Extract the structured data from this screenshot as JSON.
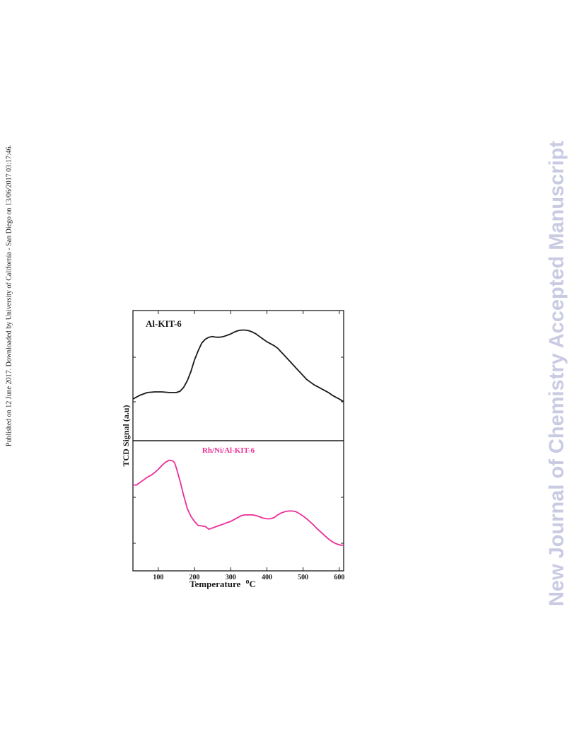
{
  "side_note": "Published on 12 June 2017. Downloaded by University of California - San Diego on 13/06/2017 03:17:46.",
  "watermark": "New Journal of Chemistry Accepted Manuscript",
  "colors": {
    "series_1": "#1a1a1a",
    "series_2": "#ec2e9a",
    "watermark": "#c9cbe3"
  },
  "chart_data": {
    "type": "line",
    "xlabel": "Temperature",
    "xlabel_unit": "oC",
    "ylabel": "TCD Signal (a.u)",
    "xlim": [
      30,
      612
    ],
    "xticks": [
      100,
      200,
      300,
      400,
      500,
      600
    ],
    "y_scale": "arbitrary units, no numeric ticks",
    "grid": false,
    "panels": [
      {
        "title": "Al-KIT-6",
        "ylim": [
          0,
          1
        ],
        "series": [
          {
            "x": [
              30,
              50,
              70,
              90,
              110,
              130,
              150,
              160,
              170,
              180,
              190,
              200,
              210,
              220,
              230,
              240,
              250,
              260,
              270,
              280,
              290,
              300,
              310,
              320,
              330,
              340,
              350,
              360,
              370,
              380,
              390,
              400,
              410,
              420,
              430,
              440,
              450,
              460,
              470,
              480,
              490,
              500,
              510,
              520,
              530,
              540,
              550,
              560,
              570,
              580,
              590,
              600,
              612
            ],
            "y": [
              0.32,
              0.35,
              0.37,
              0.375,
              0.375,
              0.37,
              0.37,
              0.38,
              0.41,
              0.46,
              0.53,
              0.62,
              0.69,
              0.75,
              0.78,
              0.795,
              0.8,
              0.795,
              0.795,
              0.8,
              0.81,
              0.82,
              0.835,
              0.845,
              0.85,
              0.85,
              0.845,
              0.835,
              0.82,
              0.8,
              0.78,
              0.76,
              0.745,
              0.73,
              0.71,
              0.68,
              0.65,
              0.62,
              0.59,
              0.56,
              0.53,
              0.5,
              0.47,
              0.45,
              0.43,
              0.415,
              0.4,
              0.385,
              0.37,
              0.35,
              0.335,
              0.32,
              0.3
            ]
          }
        ]
      },
      {
        "title": "Rh/Ni/Al-KIT-6",
        "ylim": [
          0,
          1
        ],
        "series": [
          {
            "x": [
              30,
              40,
              50,
              60,
              70,
              80,
              90,
              100,
              110,
              120,
              130,
              140,
              145,
              150,
              160,
              170,
              180,
              190,
              200,
              210,
              220,
              230,
              240,
              250,
              260,
              270,
              280,
              290,
              300,
              310,
              320,
              330,
              340,
              350,
              360,
              370,
              380,
              390,
              400,
              410,
              420,
              430,
              440,
              450,
              460,
              470,
              480,
              490,
              500,
              510,
              520,
              530,
              540,
              550,
              560,
              570,
              580,
              590,
              600,
              612
            ],
            "y": [
              0.66,
              0.66,
              0.68,
              0.7,
              0.72,
              0.735,
              0.755,
              0.78,
              0.81,
              0.835,
              0.85,
              0.845,
              0.83,
              0.79,
              0.69,
              0.58,
              0.48,
              0.42,
              0.38,
              0.35,
              0.345,
              0.34,
              0.32,
              0.33,
              0.34,
              0.35,
              0.36,
              0.37,
              0.38,
              0.395,
              0.41,
              0.425,
              0.43,
              0.43,
              0.43,
              0.425,
              0.415,
              0.405,
              0.4,
              0.4,
              0.41,
              0.43,
              0.445,
              0.455,
              0.46,
              0.46,
              0.455,
              0.44,
              0.42,
              0.4,
              0.375,
              0.35,
              0.32,
              0.295,
              0.27,
              0.245,
              0.225,
              0.21,
              0.2,
              0.195
            ]
          }
        ]
      }
    ]
  }
}
